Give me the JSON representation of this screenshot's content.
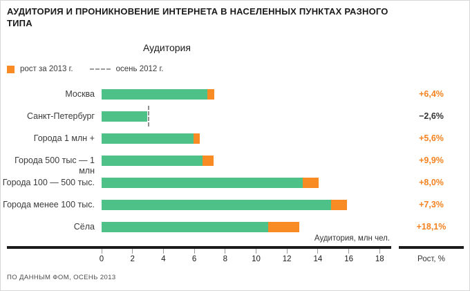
{
  "title": "АУДИТОРИЯ И ПРОНИКНОВЕНИЕ ИНТЕРНЕТА В НАСЕЛЕННЫХ ПУНКТАХ РАЗНОГО ТИПА",
  "subtitle": "Аудитория",
  "legend": {
    "growth_label": "рост за 2013 г.",
    "dashed_label": "осень 2012 г."
  },
  "axis": {
    "ticks": [
      0,
      2,
      4,
      6,
      8,
      10,
      12,
      14,
      16,
      18
    ],
    "label": "Аудитория, млн чел.",
    "right_label": "Рост, %"
  },
  "footer": "ПО ДАННЫМ ФОМ, ОСЕНЬ 2013",
  "colors": {
    "green": "#4dc188",
    "orange": "#f98b25",
    "orange_text": "#f58220",
    "negative_text": "#333333",
    "axis": "#1c1c1c",
    "dashed": "#8f8f8f"
  },
  "chart_data": {
    "type": "bar",
    "orientation": "horizontal",
    "title": "Аудитория",
    "xlabel": "Аудитория, млн чел.",
    "xlim": [
      0,
      19
    ],
    "grid": false,
    "legend_position": "top-left",
    "rows": [
      {
        "label": "Москва",
        "base_mln": 6.85,
        "growth_mln": 0.45,
        "total_2013_mln": 7.3,
        "growth_pct": "+6,4%",
        "negative": false
      },
      {
        "label": "Санкт-Петербург",
        "base_mln": 2.95,
        "growth_mln": 0,
        "total_2013_mln": 2.95,
        "autumn_2012_mln": 3.05,
        "growth_pct": "−2,6%",
        "negative": true
      },
      {
        "label": "Города 1 млн +",
        "base_mln": 5.95,
        "growth_mln": 0.4,
        "total_2013_mln": 6.35,
        "growth_pct": "+5,6%",
        "negative": false
      },
      {
        "label": "Города 500 тыс — 1 млн",
        "base_mln": 6.55,
        "growth_mln": 0.7,
        "total_2013_mln": 7.25,
        "growth_pct": "+9,9%",
        "negative": false
      },
      {
        "label": "Города 100 — 500 тыс.",
        "base_mln": 13.0,
        "growth_mln": 1.05,
        "total_2013_mln": 14.05,
        "growth_pct": "+8,0%",
        "negative": false
      },
      {
        "label": "Города менее 100 тыс.",
        "base_mln": 14.85,
        "growth_mln": 1.05,
        "total_2013_mln": 15.9,
        "growth_pct": "+7,3%",
        "negative": false
      },
      {
        "label": "Сёла",
        "base_mln": 10.8,
        "growth_mln": 2.0,
        "total_2013_mln": 12.8,
        "growth_pct": "+18,1%",
        "negative": false
      }
    ]
  }
}
